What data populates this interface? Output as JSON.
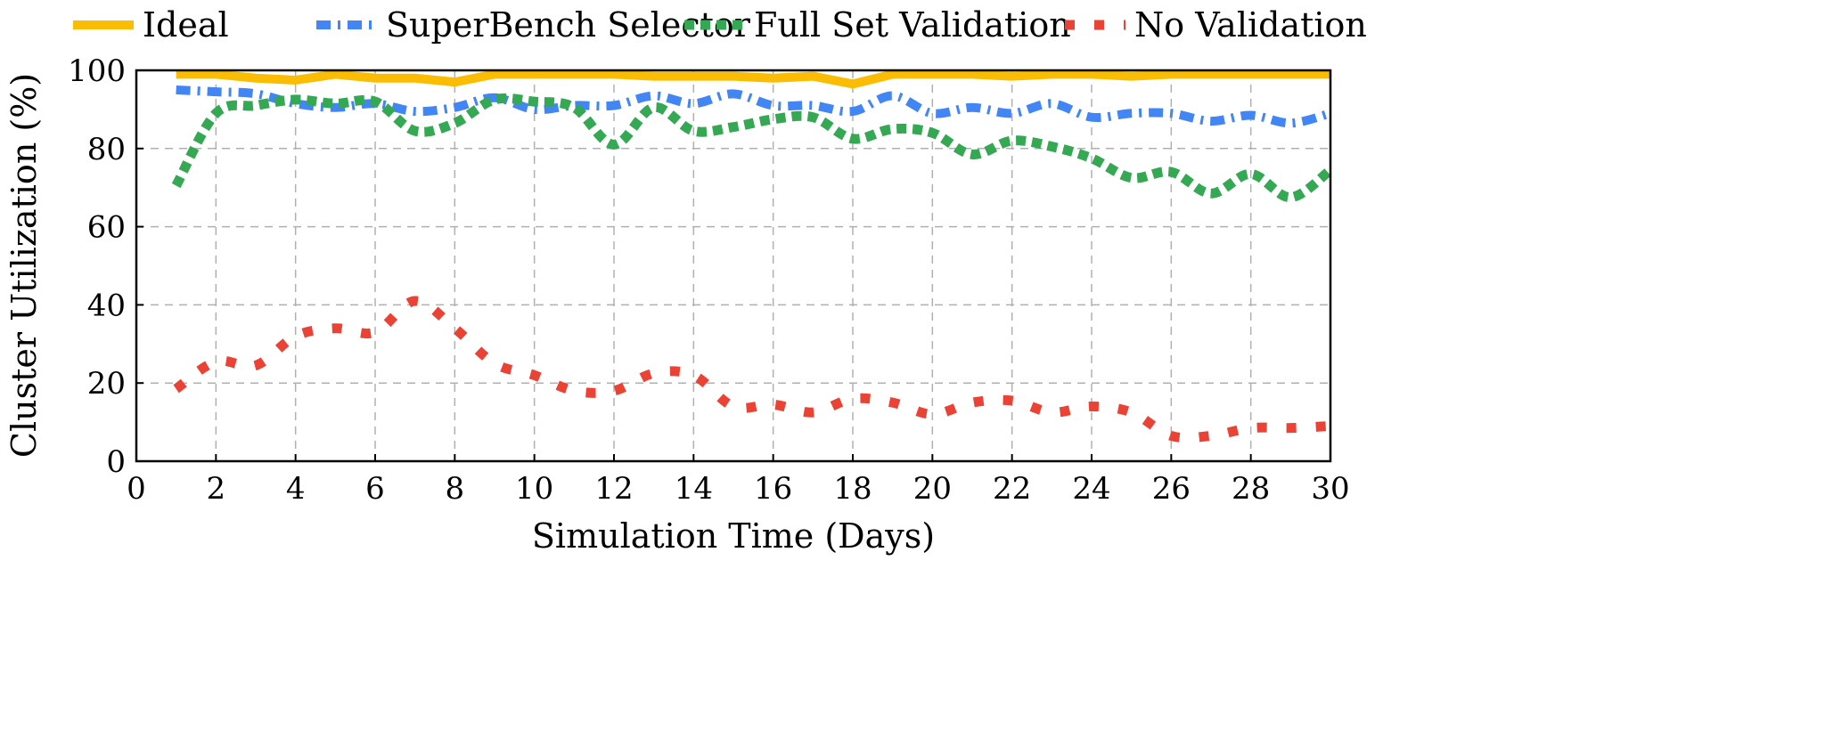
{
  "chart_data": {
    "type": "line",
    "title": "",
    "xlabel": "Simulation Time (Days)",
    "ylabel": "Cluster Utilization (%)",
    "xlim": [
      0,
      30
    ],
    "ylim": [
      0,
      100
    ],
    "xticks": [
      0,
      2,
      4,
      6,
      8,
      10,
      12,
      14,
      16,
      18,
      20,
      22,
      24,
      26,
      28,
      30
    ],
    "yticks": [
      0,
      20,
      40,
      60,
      80,
      100
    ],
    "grid": true,
    "legend_placement": "top",
    "x": [
      1,
      2,
      3,
      4,
      5,
      6,
      7,
      8,
      9,
      10,
      11,
      12,
      13,
      14,
      15,
      16,
      17,
      18,
      19,
      20,
      21,
      22,
      23,
      24,
      25,
      26,
      27,
      28,
      29,
      30
    ],
    "series": [
      {
        "name": "Ideal",
        "color": "#FBBC04",
        "style": "solid",
        "values": [
          99,
          99,
          98,
          97.5,
          99,
          98,
          98,
          97,
          99,
          99,
          99,
          99,
          98.5,
          98.5,
          98.5,
          98,
          98.5,
          96.5,
          99,
          99,
          99,
          98.5,
          99,
          99,
          98.5,
          99,
          99,
          99,
          99,
          99
        ]
      },
      {
        "name": "SuperBench Selector",
        "color": "#4285F4",
        "style": "dash-dot",
        "values": [
          95,
          94.5,
          94,
          91.5,
          90.5,
          91.5,
          89.5,
          90.5,
          93,
          90,
          91,
          91,
          93.5,
          91.5,
          94,
          91,
          91,
          89.5,
          93.5,
          89,
          90.5,
          89,
          91.5,
          88,
          89,
          89,
          87,
          88.5,
          86.5,
          89
        ]
      },
      {
        "name": "Full Set Validation",
        "color": "#34A853",
        "style": "dotted",
        "values": [
          70.5,
          89,
          91,
          92.5,
          91.5,
          92,
          84.5,
          86.5,
          92.5,
          92,
          90.5,
          81,
          90.5,
          84.5,
          85.5,
          87.5,
          88,
          82.5,
          85,
          84,
          78.5,
          82,
          80.5,
          77.5,
          72.5,
          74,
          68.5,
          73.5,
          67.5,
          74.5
        ]
      },
      {
        "name": "No Validation",
        "color": "#EA4335",
        "style": "sparse-dotted",
        "values": [
          18.5,
          25.5,
          24.5,
          32,
          34,
          33,
          41,
          34,
          25,
          22,
          18,
          18,
          22.5,
          22,
          14,
          14.5,
          12.5,
          16,
          15,
          12,
          15,
          15.5,
          12.5,
          14,
          12.5,
          6.5,
          6.5,
          8.5,
          8.5,
          9
        ]
      }
    ]
  }
}
